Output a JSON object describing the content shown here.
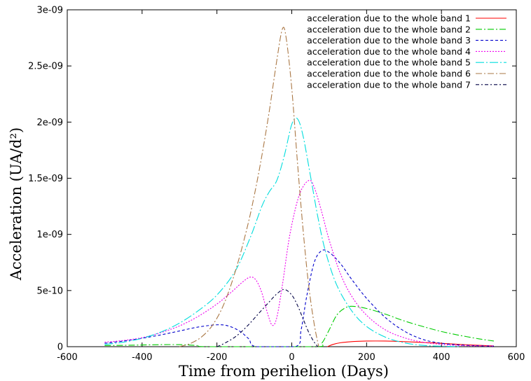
{
  "chart_data": {
    "type": "line",
    "xlabel": "Time from perihelion (Days)",
    "ylabel": "Acceleration (UA/d²)",
    "xlim": [
      -600,
      600
    ],
    "ylim": [
      0,
      3e-09
    ],
    "x_ticks": [
      "-600",
      "-400",
      "-200",
      "0",
      "200",
      "400",
      "600"
    ],
    "y_ticks": [
      "0",
      "5e-10",
      "1e-09",
      "1.5e-09",
      "2e-09",
      "2.5e-09",
      "3e-09"
    ],
    "grid": false,
    "legend_position": "top-right",
    "series": [
      {
        "name": "acceleration due to the whole band 1",
        "color": "#ff0000",
        "dash": "",
        "points": [
          [
            95,
            0
          ],
          [
            110,
            2e-11
          ],
          [
            130,
            3.5e-11
          ],
          [
            160,
            4.5e-11
          ],
          [
            200,
            5e-11
          ],
          [
            250,
            5e-11
          ],
          [
            300,
            4.5e-11
          ],
          [
            350,
            3.8e-11
          ],
          [
            400,
            3e-11
          ],
          [
            450,
            2e-11
          ],
          [
            500,
            1.2e-11
          ],
          [
            540,
            7e-12
          ]
        ]
      },
      {
        "name": "acceleration due to the whole band 2",
        "color": "#00cc00",
        "dash": "9,3,2,3",
        "points": [
          [
            -500,
            1e-11
          ],
          [
            -450,
            1.2e-11
          ],
          [
            -400,
            1.5e-11
          ],
          [
            -350,
            1.8e-11
          ],
          [
            -300,
            1.8e-11
          ],
          [
            -250,
            1e-11
          ],
          [
            -220,
            0
          ],
          [
            60,
            0
          ],
          [
            80,
            3e-11
          ],
          [
            100,
            1.5e-10
          ],
          [
            120,
            2.8e-10
          ],
          [
            140,
            3.4e-10
          ],
          [
            160,
            3.6e-10
          ],
          [
            200,
            3.4e-10
          ],
          [
            250,
            2.9e-10
          ],
          [
            300,
            2.3e-10
          ],
          [
            350,
            1.8e-10
          ],
          [
            400,
            1.35e-10
          ],
          [
            450,
            1e-10
          ],
          [
            500,
            7e-11
          ],
          [
            540,
            5e-11
          ]
        ]
      },
      {
        "name": "acceleration due to the whole band 3",
        "color": "#0000cc",
        "dash": "4,3",
        "points": [
          [
            -500,
            3e-11
          ],
          [
            -450,
            5e-11
          ],
          [
            -400,
            7.5e-11
          ],
          [
            -350,
            1.05e-10
          ],
          [
            -300,
            1.4e-10
          ],
          [
            -250,
            1.75e-10
          ],
          [
            -200,
            1.95e-10
          ],
          [
            -170,
            1.85e-10
          ],
          [
            -140,
            1.4e-10
          ],
          [
            -115,
            7e-11
          ],
          [
            -95,
            0
          ],
          [
            10,
            0
          ],
          [
            25,
            1.5e-10
          ],
          [
            40,
            4.5e-10
          ],
          [
            60,
            7.5e-10
          ],
          [
            80,
            8.55e-10
          ],
          [
            100,
            8.4e-10
          ],
          [
            130,
            7.4e-10
          ],
          [
            160,
            6e-10
          ],
          [
            200,
            4.3e-10
          ],
          [
            250,
            2.6e-10
          ],
          [
            300,
            1.4e-10
          ],
          [
            350,
            6.5e-11
          ],
          [
            400,
            3e-11
          ],
          [
            450,
            1.5e-11
          ],
          [
            500,
            8e-12
          ],
          [
            540,
            5e-12
          ]
        ]
      },
      {
        "name": "acceleration due to the whole band 4",
        "color": "#ee00ee",
        "dash": "2,2",
        "points": [
          [
            -500,
            4e-11
          ],
          [
            -450,
            5.5e-11
          ],
          [
            -400,
            8e-11
          ],
          [
            -350,
            1.25e-10
          ],
          [
            -300,
            1.85e-10
          ],
          [
            -250,
            2.7e-10
          ],
          [
            -200,
            3.8e-10
          ],
          [
            -160,
            4.9e-10
          ],
          [
            -130,
            5.8e-10
          ],
          [
            -110,
            6.2e-10
          ],
          [
            -95,
            5.9e-10
          ],
          [
            -80,
            4.8e-10
          ],
          [
            -65,
            3e-10
          ],
          [
            -52,
            1.9e-10
          ],
          [
            -40,
            2.6e-10
          ],
          [
            -25,
            5.5e-10
          ],
          [
            -5,
            1e-09
          ],
          [
            20,
            1.35e-09
          ],
          [
            45,
            1.48e-09
          ],
          [
            60,
            1.42e-09
          ],
          [
            80,
            1.2e-09
          ],
          [
            100,
            9.5e-10
          ],
          [
            130,
            6.5e-10
          ],
          [
            160,
            4.5e-10
          ],
          [
            200,
            2.8e-10
          ],
          [
            250,
            1.5e-10
          ],
          [
            300,
            8e-11
          ],
          [
            350,
            4e-11
          ],
          [
            400,
            2e-11
          ],
          [
            450,
            1e-11
          ],
          [
            500,
            6e-12
          ],
          [
            540,
            5e-12
          ]
        ]
      },
      {
        "name": "acceleration due to the whole band 5",
        "color": "#00dddd",
        "dash": "12,3,2,3",
        "points": [
          [
            -500,
            2e-11
          ],
          [
            -450,
            4e-11
          ],
          [
            -400,
            7.5e-11
          ],
          [
            -350,
            1.3e-10
          ],
          [
            -300,
            2.1e-10
          ],
          [
            -250,
            3.2e-10
          ],
          [
            -200,
            4.6e-10
          ],
          [
            -150,
            6.8e-10
          ],
          [
            -110,
            9.8e-10
          ],
          [
            -80,
            1.25e-09
          ],
          [
            -60,
            1.38e-09
          ],
          [
            -40,
            1.48e-09
          ],
          [
            -20,
            1.7e-09
          ],
          [
            0,
            1.98e-09
          ],
          [
            15,
            2.03e-09
          ],
          [
            30,
            1.88e-09
          ],
          [
            50,
            1.52e-09
          ],
          [
            70,
            1.15e-09
          ],
          [
            90,
            8.5e-10
          ],
          [
            120,
            5.5e-10
          ],
          [
            160,
            3.2e-10
          ],
          [
            200,
            1.8e-10
          ],
          [
            250,
            8.5e-11
          ],
          [
            300,
            3.5e-11
          ],
          [
            350,
            1.2e-11
          ],
          [
            400,
            4e-12
          ],
          [
            450,
            1e-12
          ]
        ]
      },
      {
        "name": "acceleration due to the whole band 6",
        "color": "#aa7744",
        "dash": "9,3,2,3",
        "points": [
          [
            -300,
            0
          ],
          [
            -270,
            3e-11
          ],
          [
            -240,
            9e-11
          ],
          [
            -210,
            2e-10
          ],
          [
            -180,
            3.9e-10
          ],
          [
            -150,
            6.8e-10
          ],
          [
            -120,
            1.05e-09
          ],
          [
            -100,
            1.35e-09
          ],
          [
            -80,
            1.7e-09
          ],
          [
            -60,
            2.1e-09
          ],
          [
            -40,
            2.55e-09
          ],
          [
            -25,
            2.83e-09
          ],
          [
            -15,
            2.75e-09
          ],
          [
            0,
            2.3e-09
          ],
          [
            15,
            1.65e-09
          ],
          [
            30,
            1.05e-09
          ],
          [
            45,
            5.5e-10
          ],
          [
            60,
            2e-10
          ],
          [
            72,
            0
          ]
        ]
      },
      {
        "name": "acceleration due to the whole band 7",
        "color": "#000044",
        "dash": "5,3,2,3",
        "points": [
          [
            -200,
            0
          ],
          [
            -180,
            3e-11
          ],
          [
            -150,
            9e-11
          ],
          [
            -120,
            1.8e-10
          ],
          [
            -90,
            2.9e-10
          ],
          [
            -60,
            4e-10
          ],
          [
            -40,
            4.7e-10
          ],
          [
            -20,
            5.1e-10
          ],
          [
            0,
            4.6e-10
          ],
          [
            15,
            3.7e-10
          ],
          [
            30,
            2.5e-10
          ],
          [
            45,
            1.3e-10
          ],
          [
            60,
            4e-11
          ],
          [
            70,
            0
          ]
        ]
      }
    ]
  }
}
